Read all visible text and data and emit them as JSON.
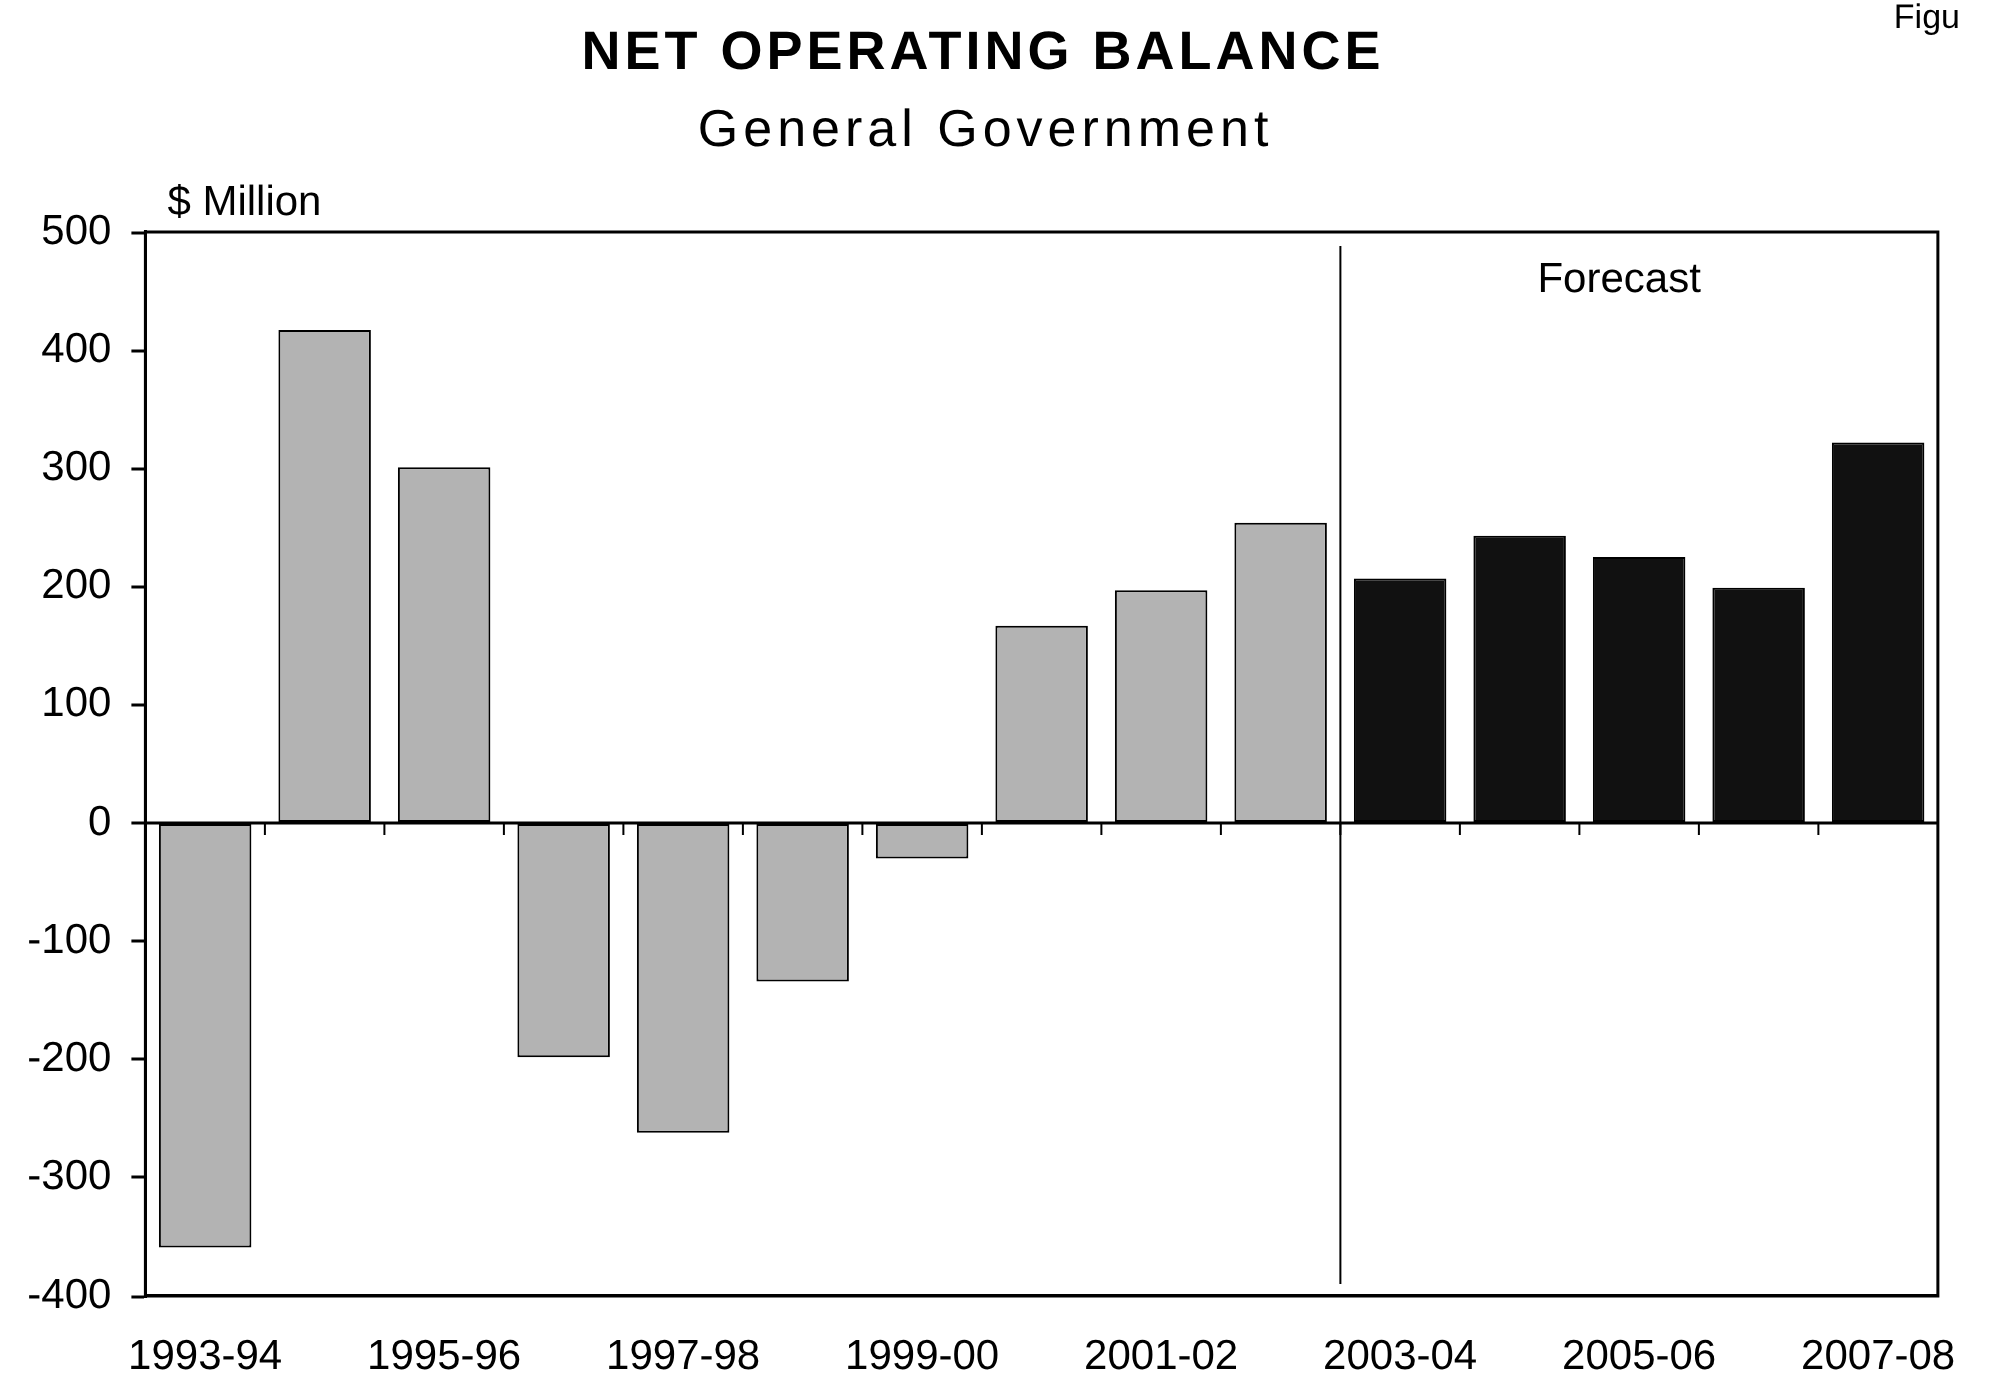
{
  "chart_data": {
    "type": "bar",
    "title": "NET OPERATING BALANCE",
    "subtitle": "General Government",
    "ylabel": "$ Million",
    "categories": [
      "1993-94",
      null,
      "1995-96",
      null,
      "1997-98",
      null,
      "1999-00",
      null,
      "2001-02",
      null,
      "2003-04",
      null,
      "2005-06",
      null,
      "2007-08"
    ],
    "values": [
      -359,
      417,
      301,
      -198,
      -262,
      -134,
      -30,
      167,
      197,
      254,
      207,
      243,
      225,
      199,
      322
    ],
    "colors": [
      "#b3b3b3",
      "#b3b3b3",
      "#b3b3b3",
      "#b3b3b3",
      "#b3b3b3",
      "#b3b3b3",
      "#b3b3b3",
      "#b3b3b3",
      "#b3b3b3",
      "#b3b3b3",
      "#111111",
      "#111111",
      "#111111",
      "#111111",
      "#111111"
    ],
    "ylim": [
      -400,
      500
    ],
    "yticks": [
      -400,
      -300,
      -200,
      -100,
      0,
      100,
      200,
      300,
      400,
      500
    ],
    "ref_lines": [
      {
        "axis": "x",
        "value": "2003-04",
        "label": "Forecast"
      }
    ],
    "annotations": [
      "Figu"
    ]
  }
}
